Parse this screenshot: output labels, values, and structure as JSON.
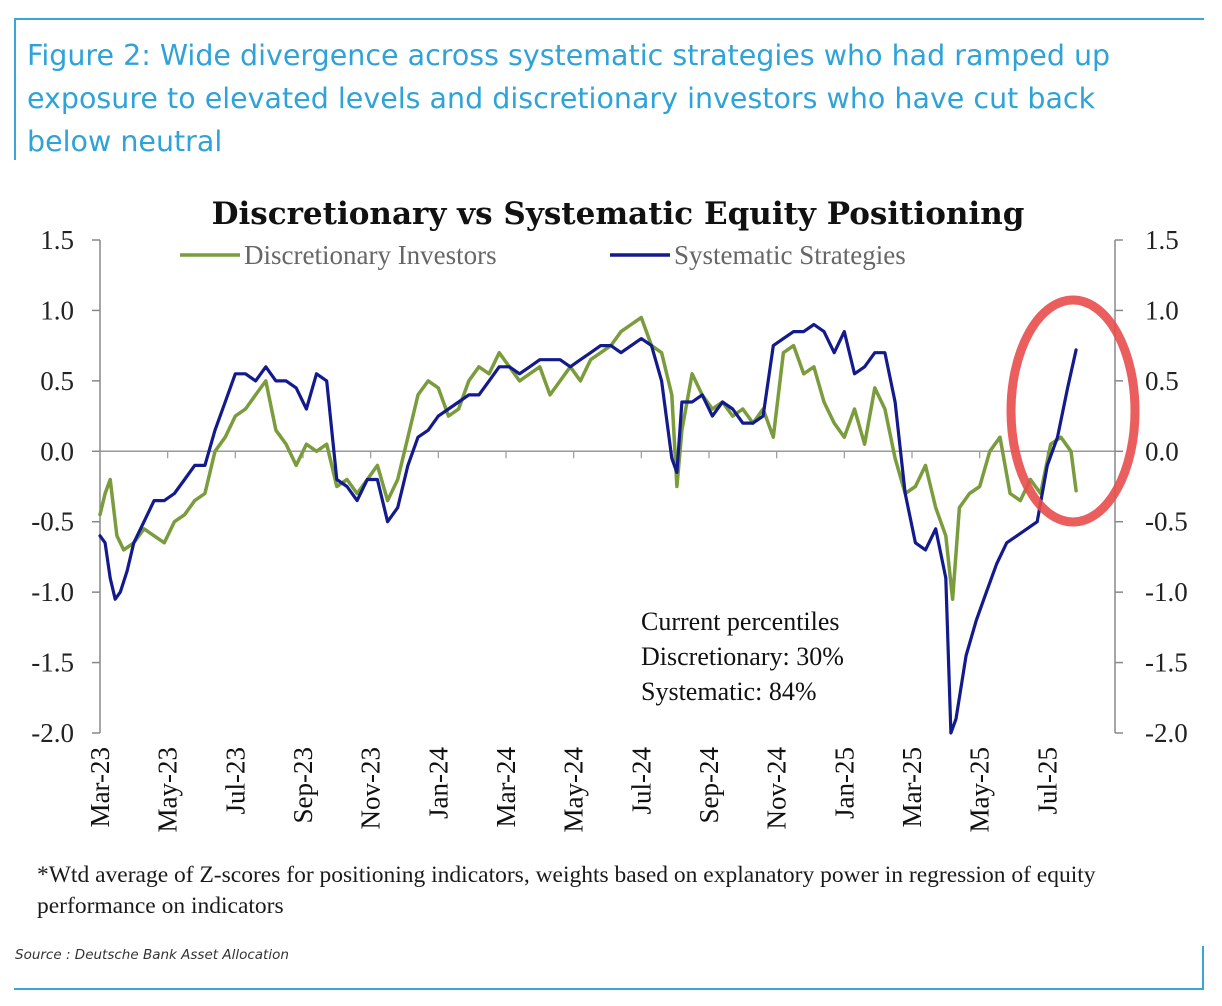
{
  "figure": {
    "title": "Figure 2: Wide divergence across systematic strategies who had ramped up exposure to elevated levels and discretionary investors who have cut back below neutral",
    "footnote": "*Wtd average of Z-scores for positioning indicators, weights based on explanatory power in regression of equity performance on indicators",
    "source": "Source : Deutsche Bank Asset Allocation",
    "accent_color": "#2fa3d8"
  },
  "annotation": {
    "heading": "Current percentiles",
    "discretionary": "Discretionary: 30%",
    "systematic": "Systematic: 84%"
  },
  "chart_data": {
    "type": "line",
    "title": "Discretionary  vs Systematic Equity Positioning",
    "xlabel": "",
    "ylabel": "",
    "ylim": [
      -2.0,
      1.5
    ],
    "yticks": [
      "1.5",
      "1.0",
      "0.5",
      "0.0",
      "-0.5",
      "-1.0",
      "-1.5",
      "-2.0"
    ],
    "ytick_values": [
      1.5,
      1.0,
      0.5,
      0.0,
      -0.5,
      -1.0,
      -1.5,
      -2.0
    ],
    "xlim": [
      0,
      30
    ],
    "x_tick_labels": [
      "Mar-23",
      "May-23",
      "Jul-23",
      "Sep-23",
      "Nov-23",
      "Jan-24",
      "Mar-24",
      "May-24",
      "Jul-24",
      "Sep-24",
      "Nov-24",
      "Jan-25",
      "Mar-25",
      "May-25",
      "Jul-25"
    ],
    "x_tick_positions": [
      0,
      2,
      4,
      6,
      8,
      10,
      12,
      14,
      16,
      18,
      20,
      22,
      24,
      26,
      28
    ],
    "legend_position": "top",
    "grid": false,
    "highlight": "red ellipse around latest values (Jul-25 onward)",
    "series": [
      {
        "name": "Discretionary Investors",
        "color": "#7a9c3c",
        "x": [
          0,
          0.15,
          0.3,
          0.5,
          0.7,
          1.0,
          1.3,
          1.6,
          1.9,
          2.2,
          2.5,
          2.8,
          3.1,
          3.4,
          3.7,
          4.0,
          4.3,
          4.6,
          4.9,
          5.2,
          5.5,
          5.8,
          6.1,
          6.4,
          6.7,
          7.0,
          7.3,
          7.6,
          7.9,
          8.2,
          8.5,
          8.8,
          9.1,
          9.4,
          9.7,
          10.0,
          10.3,
          10.6,
          10.9,
          11.2,
          11.5,
          11.8,
          12.1,
          12.4,
          12.7,
          13.0,
          13.3,
          13.6,
          13.9,
          14.2,
          14.5,
          14.8,
          15.1,
          15.4,
          15.7,
          16.0,
          16.3,
          16.6,
          16.9,
          17.05,
          17.2,
          17.5,
          17.8,
          18.1,
          18.4,
          18.7,
          19.0,
          19.3,
          19.6,
          19.9,
          20.2,
          20.5,
          20.8,
          21.1,
          21.4,
          21.7,
          22.0,
          22.3,
          22.6,
          22.9,
          23.2,
          23.5,
          23.8,
          24.1,
          24.4,
          24.7,
          25.0,
          25.2,
          25.4,
          25.7,
          26.0,
          26.3,
          26.6,
          26.9,
          27.2,
          27.5,
          27.8,
          28.1,
          28.4,
          28.7,
          28.85
        ],
        "values": [
          -0.45,
          -0.3,
          -0.2,
          -0.6,
          -0.7,
          -0.65,
          -0.55,
          -0.6,
          -0.65,
          -0.5,
          -0.45,
          -0.35,
          -0.3,
          0.0,
          0.1,
          0.25,
          0.3,
          0.4,
          0.5,
          0.15,
          0.05,
          -0.1,
          0.05,
          0.0,
          0.05,
          -0.25,
          -0.2,
          -0.3,
          -0.2,
          -0.1,
          -0.35,
          -0.2,
          0.1,
          0.4,
          0.5,
          0.45,
          0.25,
          0.3,
          0.5,
          0.6,
          0.55,
          0.7,
          0.6,
          0.5,
          0.55,
          0.6,
          0.4,
          0.5,
          0.6,
          0.5,
          0.65,
          0.7,
          0.75,
          0.85,
          0.9,
          0.95,
          0.75,
          0.7,
          0.4,
          -0.25,
          0.15,
          0.55,
          0.4,
          0.3,
          0.35,
          0.25,
          0.3,
          0.2,
          0.3,
          0.1,
          0.7,
          0.75,
          0.55,
          0.6,
          0.35,
          0.2,
          0.1,
          0.3,
          0.05,
          0.45,
          0.3,
          -0.05,
          -0.3,
          -0.25,
          -0.1,
          -0.4,
          -0.6,
          -1.05,
          -0.4,
          -0.3,
          -0.25,
          0.0,
          0.1,
          -0.3,
          -0.35,
          -0.2,
          -0.3,
          0.05,
          0.1,
          0.0,
          -0.28
        ]
      },
      {
        "name": "Systematic Strategies",
        "color": "#131a8c",
        "x": [
          0,
          0.15,
          0.3,
          0.45,
          0.6,
          0.8,
          1.0,
          1.3,
          1.6,
          1.9,
          2.2,
          2.5,
          2.8,
          3.1,
          3.4,
          3.7,
          4.0,
          4.3,
          4.6,
          4.9,
          5.2,
          5.5,
          5.8,
          6.1,
          6.4,
          6.7,
          7.0,
          7.3,
          7.6,
          7.9,
          8.2,
          8.5,
          8.8,
          9.1,
          9.4,
          9.7,
          10.0,
          10.3,
          10.6,
          10.9,
          11.2,
          11.5,
          11.8,
          12.1,
          12.4,
          12.7,
          13.0,
          13.3,
          13.6,
          13.9,
          14.2,
          14.5,
          14.8,
          15.1,
          15.4,
          15.7,
          16.0,
          16.3,
          16.6,
          16.9,
          17.05,
          17.2,
          17.5,
          17.8,
          18.1,
          18.4,
          18.7,
          19.0,
          19.3,
          19.6,
          19.9,
          20.2,
          20.5,
          20.8,
          21.1,
          21.4,
          21.7,
          22.0,
          22.3,
          22.6,
          22.9,
          23.2,
          23.5,
          23.8,
          24.1,
          24.4,
          24.7,
          25.0,
          25.15,
          25.3,
          25.6,
          25.9,
          26.2,
          26.5,
          26.8,
          27.1,
          27.4,
          27.7,
          28.0,
          28.3,
          28.6,
          28.85
        ],
        "values": [
          -0.6,
          -0.65,
          -0.9,
          -1.05,
          -1.0,
          -0.85,
          -0.65,
          -0.5,
          -0.35,
          -0.35,
          -0.3,
          -0.2,
          -0.1,
          -0.1,
          0.15,
          0.35,
          0.55,
          0.55,
          0.5,
          0.6,
          0.5,
          0.5,
          0.45,
          0.3,
          0.55,
          0.5,
          -0.2,
          -0.25,
          -0.35,
          -0.2,
          -0.2,
          -0.5,
          -0.4,
          -0.1,
          0.1,
          0.15,
          0.25,
          0.3,
          0.35,
          0.4,
          0.4,
          0.5,
          0.6,
          0.6,
          0.55,
          0.6,
          0.65,
          0.65,
          0.65,
          0.6,
          0.65,
          0.7,
          0.75,
          0.75,
          0.7,
          0.75,
          0.8,
          0.75,
          0.5,
          -0.05,
          -0.15,
          0.35,
          0.35,
          0.4,
          0.25,
          0.35,
          0.3,
          0.2,
          0.2,
          0.25,
          0.75,
          0.8,
          0.85,
          0.85,
          0.9,
          0.85,
          0.7,
          0.85,
          0.55,
          0.6,
          0.7,
          0.7,
          0.35,
          -0.3,
          -0.65,
          -0.7,
          -0.55,
          -0.9,
          -2.0,
          -1.9,
          -1.45,
          -1.2,
          -1.0,
          -0.8,
          -0.65,
          -0.6,
          -0.55,
          -0.5,
          -0.1,
          0.1,
          0.45,
          0.72
        ]
      }
    ]
  }
}
